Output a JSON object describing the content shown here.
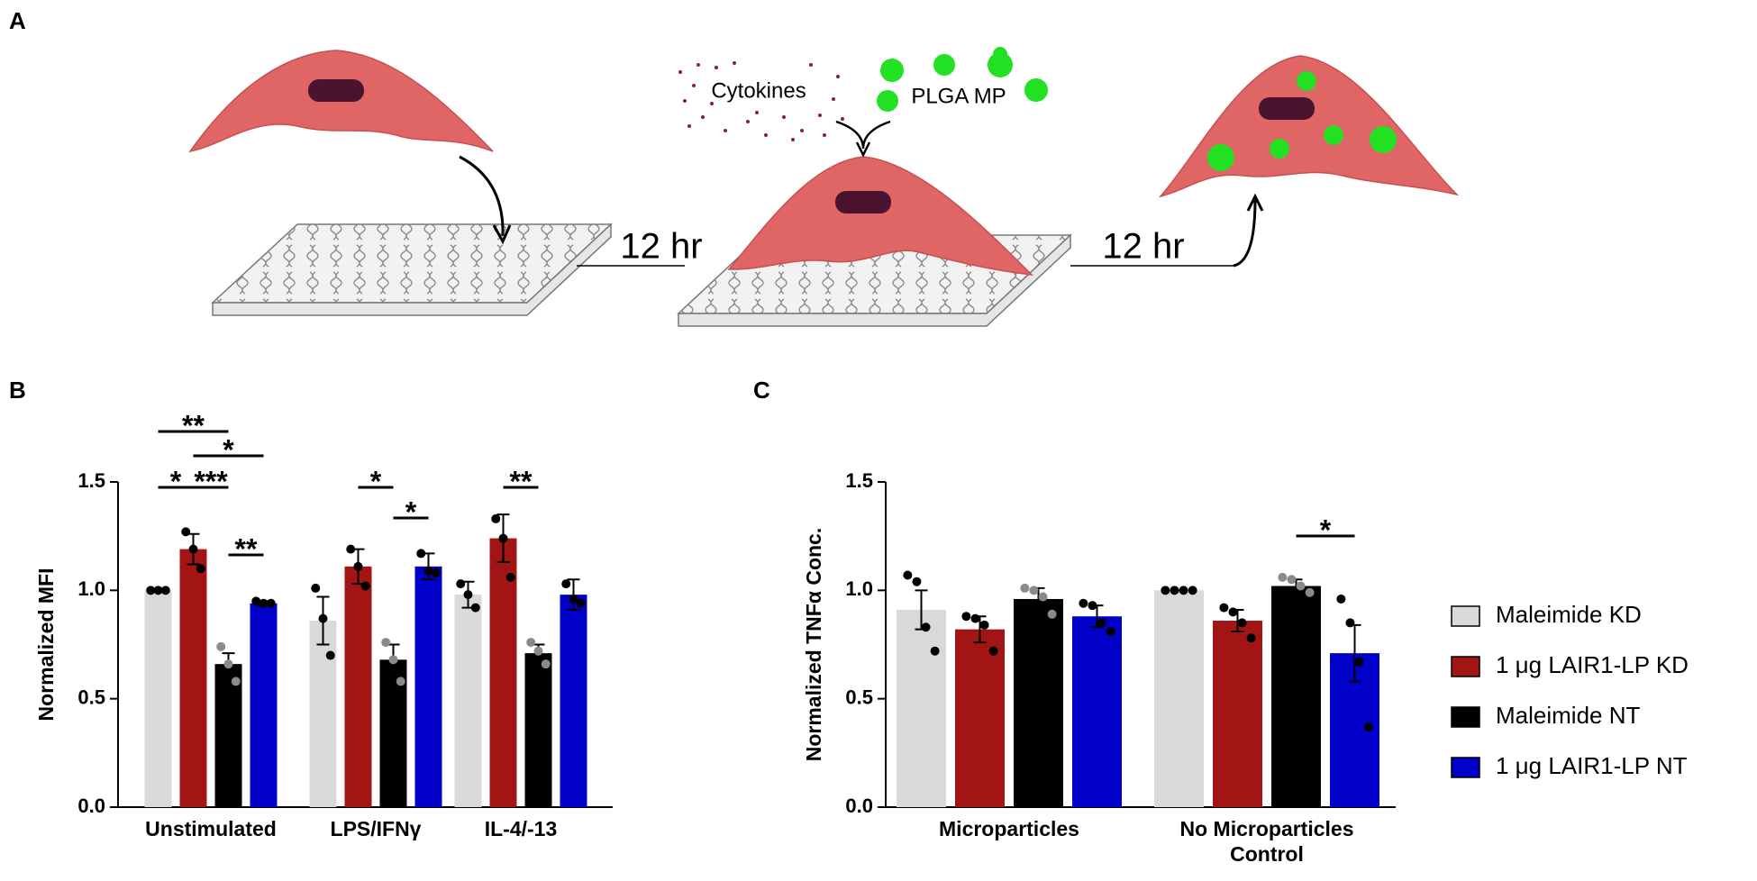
{
  "panels": [
    "A",
    "B",
    "C"
  ],
  "schematic": {
    "cytokines": "Cytokines",
    "microparticles": "PLGA MP",
    "time_1": "12 hr",
    "time_2": "12 hr"
  },
  "legend": [
    {
      "name": "Maleimide KD",
      "color": "#d9d9d9",
      "point_color": "#000000"
    },
    {
      "name": "1 μg LAIR1-LP KD",
      "color": "#a31515",
      "point_color": "#000000"
    },
    {
      "name": "Maleimide NT",
      "color": "#000000",
      "point_color": "#8a8a8a"
    },
    {
      "name": "1 μg LAIR1-LP NT",
      "color": "#0000c8",
      "point_color": "#000000"
    }
  ],
  "chart_data": [
    {
      "type": "bar",
      "y_label": "Normalized MFI",
      "categories": [
        "Unstimulated",
        "LPS/IFNγ",
        "IL-4/-13"
      ],
      "ylim": [
        0,
        1.5
      ],
      "yticks": [
        {
          "value": 0,
          "label": "0.0"
        },
        0.5,
        {
          "value": 1,
          "label": "1.0"
        },
        1.5
      ],
      "series": [
        {
          "values": [
            1.0,
            0.86,
            0.98
          ],
          "errors": [
            0,
            0.11,
            0.06
          ],
          "points": [
            [
              1.0,
              1.0,
              1.0
            ],
            [
              1.01,
              0.87,
              0.7
            ],
            [
              1.03,
              0.98,
              0.92
            ]
          ]
        },
        {
          "values": [
            1.19,
            1.11,
            1.24
          ],
          "errors": [
            0.07,
            0.08,
            0.11
          ],
          "points": [
            [
              1.27,
              1.19,
              1.1
            ],
            [
              1.19,
              1.11,
              1.02
            ],
            [
              1.33,
              1.24,
              1.06
            ]
          ]
        },
        {
          "values": [
            0.66,
            0.68,
            0.71
          ],
          "errors": [
            0.05,
            0.07,
            0.04
          ],
          "points": [
            [
              0.74,
              0.66,
              0.58
            ],
            [
              0.76,
              0.68,
              0.58
            ],
            [
              0.76,
              0.72,
              0.66
            ]
          ]
        },
        {
          "values": [
            0.94,
            1.11,
            0.98
          ],
          "errors": [
            0.01,
            0.06,
            0.07
          ],
          "points": [
            [
              0.95,
              0.94,
              0.94
            ],
            [
              1.17,
              1.09,
              1.08
            ],
            [
              1.03,
              0.96,
              0.94
            ]
          ]
        }
      ],
      "annotations": [
        "**",
        "*",
        "*",
        "***",
        "**",
        "*",
        "*",
        "**"
      ]
    },
    {
      "type": "bar",
      "y_label": "Normalized TNFα Conc.",
      "categories": [
        "Microparticles",
        "No Microparticles Control"
      ],
      "ylim": [
        0,
        1.5
      ],
      "yticks": [
        {
          "value": 0,
          "label": "0.0"
        },
        0.5,
        {
          "value": 1,
          "label": "1.0"
        },
        1.5
      ],
      "series": [
        {
          "values": [
            0.91,
            1.0
          ],
          "errors": [
            0.09,
            0
          ],
          "points": [
            [
              1.07,
              1.04,
              0.83,
              0.72
            ],
            [
              1.0,
              1.0,
              1.0,
              1.0
            ]
          ]
        },
        {
          "values": [
            0.82,
            0.86
          ],
          "errors": [
            0.06,
            0.05
          ],
          "points": [
            [
              0.88,
              0.87,
              0.84,
              0.72
            ],
            [
              0.92,
              0.9,
              0.85,
              0.78
            ]
          ]
        },
        {
          "values": [
            0.96,
            1.02
          ],
          "errors": [
            0.05,
            0.03
          ],
          "points": [
            [
              1.01,
              1.0,
              0.97,
              0.89
            ],
            [
              1.06,
              1.05,
              1.02,
              0.99
            ]
          ]
        },
        {
          "values": [
            0.88,
            0.71
          ],
          "errors": [
            0.05,
            0.13
          ],
          "points": [
            [
              0.94,
              0.93,
              0.85,
              0.81
            ],
            [
              0.96,
              0.85,
              0.67,
              0.37
            ]
          ]
        }
      ],
      "annotations": [
        "*"
      ]
    }
  ]
}
